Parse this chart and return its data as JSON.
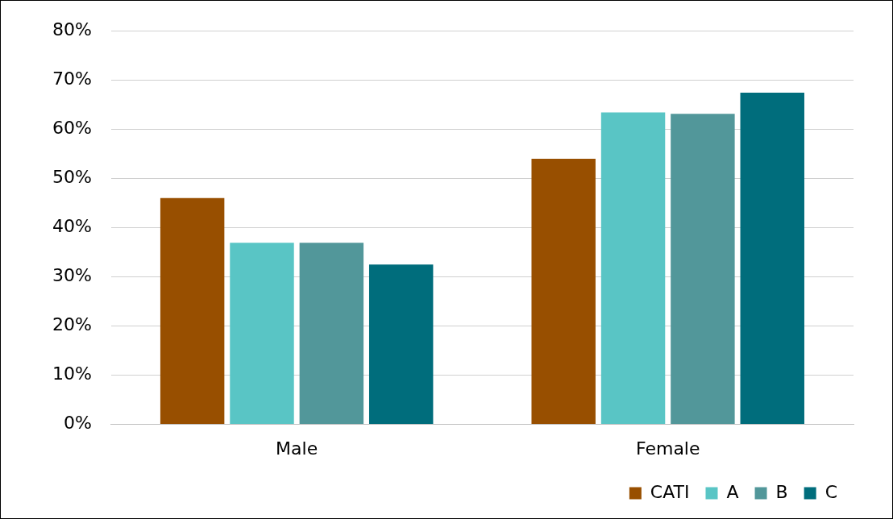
{
  "chart_data": {
    "type": "bar",
    "categories": [
      "Male",
      "Female"
    ],
    "series": [
      {
        "name": "CATI",
        "color": "#984f00",
        "values": [
          46,
          54
        ]
      },
      {
        "name": "A",
        "color": "#59c5c5",
        "values": [
          36.9,
          63.4
        ]
      },
      {
        "name": "B",
        "color": "#52979a",
        "values": [
          36.9,
          63.1
        ]
      },
      {
        "name": "C",
        "color": "#006d7c",
        "values": [
          32.5,
          67.4
        ]
      }
    ],
    "ylim": [
      0,
      80
    ],
    "yticks": [
      {
        "value": 0,
        "label": "0%"
      },
      {
        "value": 10,
        "label": "10%"
      },
      {
        "value": 20,
        "label": "20%"
      },
      {
        "value": 30,
        "label": "30%"
      },
      {
        "value": 40,
        "label": "40%"
      },
      {
        "value": 50,
        "label": "50%"
      },
      {
        "value": 60,
        "label": "60%"
      },
      {
        "value": 70,
        "label": "70%"
      },
      {
        "value": 80,
        "label": "80%"
      }
    ],
    "grid": "y",
    "legend": "bottom right"
  }
}
